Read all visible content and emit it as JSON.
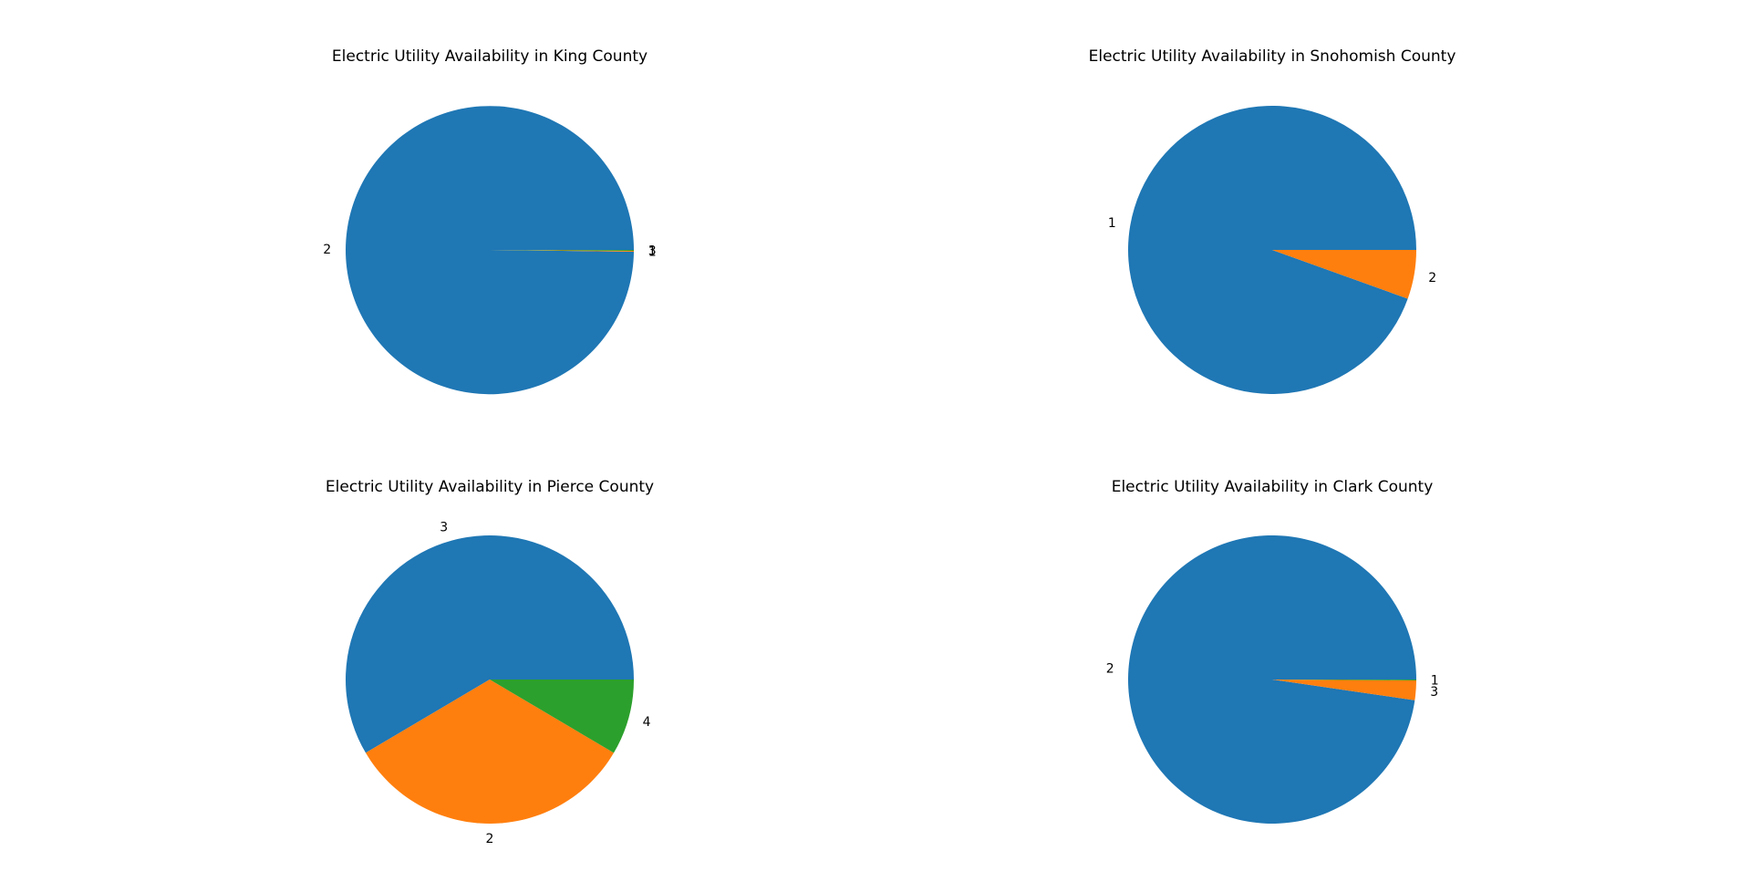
{
  "chart_data": [
    {
      "type": "pie",
      "title": "Electric Utility Availability in King County",
      "slices": [
        {
          "label": "2",
          "value": 99.8,
          "color": "#1f77b4"
        },
        {
          "label": "1",
          "value": 0.1,
          "color": "#ff7f0e"
        },
        {
          "label": "3",
          "value": 0.1,
          "color": "#2ca02c"
        }
      ]
    },
    {
      "type": "pie",
      "title": "Electric Utility Availability in Snohomish County",
      "slices": [
        {
          "label": "1",
          "value": 94.5,
          "color": "#1f77b4"
        },
        {
          "label": "2",
          "value": 5.5,
          "color": "#ff7f0e"
        }
      ]
    },
    {
      "type": "pie",
      "title": "Electric Utility Availability in Pierce County",
      "slices": [
        {
          "label": "3",
          "value": 58.5,
          "color": "#1f77b4"
        },
        {
          "label": "2",
          "value": 33.0,
          "color": "#ff7f0e"
        },
        {
          "label": "4",
          "value": 8.5,
          "color": "#2ca02c"
        }
      ]
    },
    {
      "type": "pie",
      "title": "Electric Utility Availability in Clark County",
      "slices": [
        {
          "label": "2",
          "value": 97.7,
          "color": "#1f77b4"
        },
        {
          "label": "3",
          "value": 2.2,
          "color": "#ff7f0e"
        },
        {
          "label": "1",
          "value": 0.1,
          "color": "#2ca02c"
        }
      ]
    }
  ]
}
